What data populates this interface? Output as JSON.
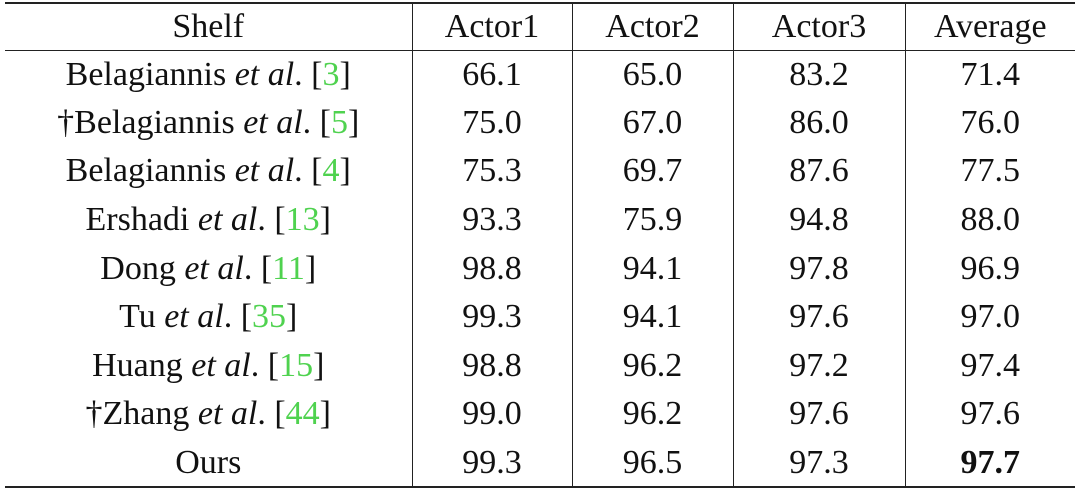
{
  "table": {
    "header": [
      "Shelf",
      "Actor1",
      "Actor2",
      "Actor3",
      "Average"
    ],
    "rows": [
      {
        "method": [
          "Belagiannis ",
          "et al",
          ". [",
          "3",
          "]"
        ],
        "values": [
          "66.1",
          "65.0",
          "83.2",
          "71.4"
        ]
      },
      {
        "method": [
          "†Belagiannis ",
          "et al",
          ". [",
          "5",
          "]"
        ],
        "values": [
          "75.0",
          "67.0",
          "86.0",
          "76.0"
        ]
      },
      {
        "method": [
          "Belagiannis ",
          "et al",
          ". [",
          "4",
          "]"
        ],
        "values": [
          "75.3",
          "69.7",
          "87.6",
          "77.5"
        ]
      },
      {
        "method": [
          "Ershadi ",
          "et al",
          ". [",
          "13",
          "]"
        ],
        "values": [
          "93.3",
          "75.9",
          "94.8",
          "88.0"
        ]
      },
      {
        "method": [
          "Dong ",
          "et al",
          ". [",
          "11",
          "]"
        ],
        "values": [
          "98.8",
          "94.1",
          "97.8",
          "96.9"
        ]
      },
      {
        "method": [
          "Tu ",
          "et al",
          ". [",
          "35",
          "]"
        ],
        "values": [
          "99.3",
          "94.1",
          "97.6",
          "97.0"
        ]
      },
      {
        "method": [
          "Huang ",
          "et al",
          ". [",
          "15",
          "]"
        ],
        "values": [
          "98.8",
          "96.2",
          "97.2",
          "97.4"
        ]
      },
      {
        "method": [
          "†Zhang ",
          "et al",
          ". [",
          "44",
          "]"
        ],
        "values": [
          "99.0",
          "96.2",
          "97.6",
          "97.6"
        ]
      },
      {
        "method": [
          "Ours"
        ],
        "values": [
          "99.3",
          "96.5",
          "97.3",
          "97.7"
        ],
        "bold": [
          3
        ]
      }
    ]
  }
}
